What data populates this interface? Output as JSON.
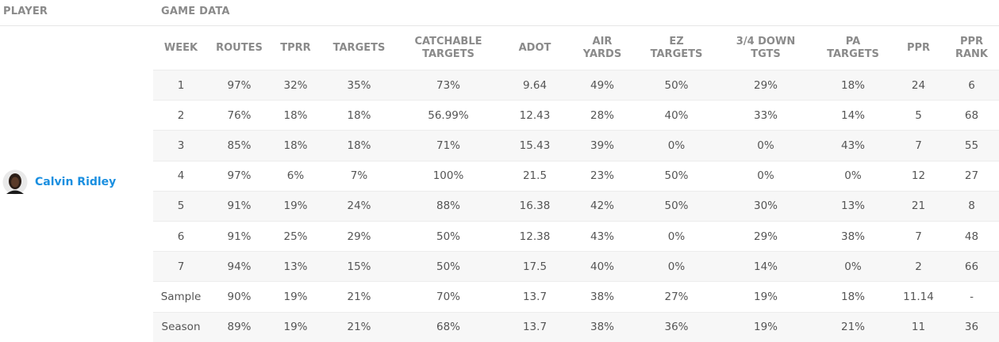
{
  "header": {
    "player": "PLAYER",
    "game_data": "GAME DATA"
  },
  "player": {
    "name": "Calvin Ridley"
  },
  "table": {
    "columns": [
      "WEEK",
      "ROUTES",
      "TPRR",
      "TARGETS",
      "CATCHABLE\nTARGETS",
      "ADOT",
      "AIR\nYARDS",
      "EZ\nTARGETS",
      "3/4 DOWN\nTGTS",
      "PA\nTARGETS",
      "PPR",
      "PPR\nRANK"
    ],
    "rows": [
      [
        "1",
        "97%",
        "32%",
        "35%",
        "73%",
        "9.64",
        "49%",
        "50%",
        "29%",
        "18%",
        "24",
        "6"
      ],
      [
        "2",
        "76%",
        "18%",
        "18%",
        "56.99%",
        "12.43",
        "28%",
        "40%",
        "33%",
        "14%",
        "5",
        "68"
      ],
      [
        "3",
        "85%",
        "18%",
        "18%",
        "71%",
        "15.43",
        "39%",
        "0%",
        "0%",
        "43%",
        "7",
        "55"
      ],
      [
        "4",
        "97%",
        "6%",
        "7%",
        "100%",
        "21.5",
        "23%",
        "50%",
        "0%",
        "0%",
        "12",
        "27"
      ],
      [
        "5",
        "91%",
        "19%",
        "24%",
        "88%",
        "16.38",
        "42%",
        "50%",
        "30%",
        "13%",
        "21",
        "8"
      ],
      [
        "6",
        "91%",
        "25%",
        "29%",
        "50%",
        "12.38",
        "43%",
        "0%",
        "29%",
        "38%",
        "7",
        "48"
      ],
      [
        "7",
        "94%",
        "13%",
        "15%",
        "50%",
        "17.5",
        "40%",
        "0%",
        "14%",
        "0%",
        "2",
        "66"
      ],
      [
        "Sample",
        "90%",
        "19%",
        "21%",
        "70%",
        "13.7",
        "38%",
        "27%",
        "19%",
        "18%",
        "11.14",
        "-"
      ],
      [
        "Season",
        "89%",
        "19%",
        "21%",
        "68%",
        "13.7",
        "38%",
        "36%",
        "19%",
        "21%",
        "11",
        "36"
      ]
    ]
  }
}
